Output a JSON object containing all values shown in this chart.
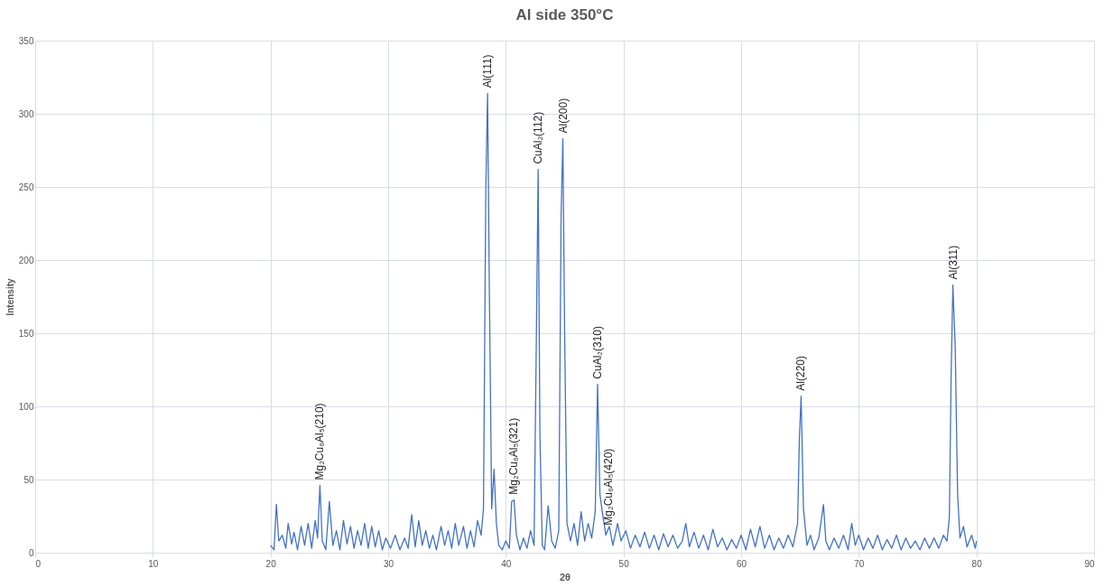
{
  "chart_data": {
    "type": "line",
    "title": "Al side 350°C",
    "xlabel": "2θ",
    "ylabel": "Intensity",
    "color": "#4472c4",
    "x": [
      20.0,
      20.3,
      20.5,
      20.7,
      21.0,
      21.3,
      21.5,
      21.8,
      22.0,
      22.3,
      22.6,
      22.9,
      23.2,
      23.5,
      23.8,
      24.0,
      24.2,
      24.4,
      24.7,
      25.0,
      25.3,
      25.6,
      25.9,
      26.2,
      26.5,
      26.8,
      27.1,
      27.4,
      27.7,
      28.0,
      28.3,
      28.6,
      28.9,
      29.2,
      29.5,
      29.8,
      30.2,
      30.6,
      31.0,
      31.4,
      31.7,
      32.0,
      32.3,
      32.6,
      32.9,
      33.2,
      33.5,
      33.8,
      34.1,
      34.5,
      34.8,
      35.1,
      35.4,
      35.7,
      36.0,
      36.4,
      36.7,
      37.0,
      37.3,
      37.6,
      37.9,
      38.1,
      38.3,
      38.45,
      38.6,
      38.8,
      39.0,
      39.2,
      39.4,
      39.7,
      40.0,
      40.3,
      40.5,
      40.7,
      40.9,
      41.2,
      41.5,
      41.8,
      42.1,
      42.4,
      42.6,
      42.75,
      42.9,
      43.1,
      43.3,
      43.6,
      43.9,
      44.2,
      44.5,
      44.7,
      44.85,
      45.0,
      45.2,
      45.5,
      45.8,
      46.1,
      46.4,
      46.7,
      47.0,
      47.3,
      47.6,
      47.8,
      48.0,
      48.2,
      48.5,
      48.8,
      49.1,
      49.5,
      49.8,
      50.2,
      50.6,
      51.0,
      51.4,
      51.8,
      52.2,
      52.6,
      53.0,
      53.4,
      53.8,
      54.2,
      54.6,
      55.0,
      55.3,
      55.6,
      56.0,
      56.4,
      56.8,
      57.2,
      57.6,
      58.0,
      58.4,
      58.8,
      59.2,
      59.6,
      60.0,
      60.4,
      60.8,
      61.2,
      61.6,
      62.0,
      62.4,
      62.8,
      63.2,
      63.6,
      64.0,
      64.4,
      64.8,
      64.95,
      65.1,
      65.3,
      65.6,
      65.9,
      66.2,
      66.6,
      67.0,
      67.2,
      67.5,
      67.9,
      68.3,
      68.7,
      69.1,
      69.4,
      69.7,
      70.0,
      70.4,
      70.8,
      71.2,
      71.6,
      72.0,
      72.4,
      72.8,
      73.2,
      73.6,
      74.0,
      74.4,
      74.8,
      75.2,
      75.6,
      76.0,
      76.4,
      76.8,
      77.2,
      77.5,
      77.7,
      77.85,
      78.0,
      78.2,
      78.4,
      78.6,
      78.9,
      79.2,
      79.6,
      79.9,
      80.0
    ],
    "values": [
      5,
      2,
      33,
      8,
      12,
      3,
      20,
      6,
      14,
      2,
      18,
      5,
      20,
      3,
      22,
      10,
      46,
      8,
      2,
      35,
      5,
      15,
      2,
      22,
      6,
      18,
      3,
      15,
      5,
      20,
      3,
      18,
      4,
      15,
      2,
      10,
      3,
      12,
      2,
      10,
      3,
      26,
      4,
      22,
      5,
      15,
      3,
      12,
      2,
      18,
      5,
      15,
      3,
      20,
      5,
      18,
      3,
      15,
      4,
      22,
      12,
      30,
      248,
      314,
      180,
      30,
      57,
      20,
      5,
      2,
      8,
      3,
      35,
      36,
      12,
      2,
      10,
      3,
      15,
      5,
      150,
      262,
      80,
      5,
      2,
      32,
      8,
      3,
      15,
      230,
      283,
      150,
      20,
      8,
      20,
      5,
      28,
      8,
      20,
      10,
      28,
      115,
      40,
      28,
      12,
      18,
      5,
      20,
      8,
      15,
      3,
      12,
      4,
      14,
      3,
      12,
      2,
      13,
      4,
      12,
      3,
      8,
      20,
      4,
      14,
      3,
      12,
      2,
      16,
      4,
      10,
      2,
      9,
      3,
      12,
      2,
      16,
      4,
      18,
      3,
      12,
      2,
      10,
      3,
      12,
      4,
      20,
      78,
      107,
      30,
      5,
      12,
      2,
      10,
      33,
      8,
      2,
      10,
      3,
      12,
      2,
      20,
      5,
      12,
      2,
      10,
      3,
      12,
      2,
      9,
      3,
      12,
      2,
      10,
      3,
      8,
      2,
      10,
      3,
      10,
      3,
      12,
      8,
      24,
      120,
      183,
      140,
      40,
      10,
      18,
      4,
      12,
      3,
      8
    ],
    "xlim": [
      0,
      90
    ],
    "xticks": [
      0,
      10,
      20,
      30,
      40,
      50,
      60,
      70,
      80,
      90
    ],
    "ylim": [
      0,
      350
    ],
    "yticks": [
      0,
      50,
      100,
      150,
      200,
      250,
      300,
      350
    ],
    "grid": true,
    "annotations": [
      {
        "text": "Mg₂Cu₆Al₅(210)",
        "x": 24.2,
        "y": 46
      },
      {
        "text": "Al(111)",
        "x": 38.45,
        "y": 314
      },
      {
        "text": "Mg₂Cu₆Al₅(321)",
        "x": 40.7,
        "y": 36
      },
      {
        "text": "CuAl₂(112)",
        "x": 42.75,
        "y": 262
      },
      {
        "text": "Al(200)",
        "x": 44.85,
        "y": 283
      },
      {
        "text": "CuAl₂(310)",
        "x": 47.8,
        "y": 115
      },
      {
        "text": "Mg₂Cu₆Al₅(420)",
        "x": 48.7,
        "y": 15
      },
      {
        "text": "Al(220)",
        "x": 65.1,
        "y": 107
      },
      {
        "text": "Al(311)",
        "x": 78.0,
        "y": 183
      }
    ]
  }
}
